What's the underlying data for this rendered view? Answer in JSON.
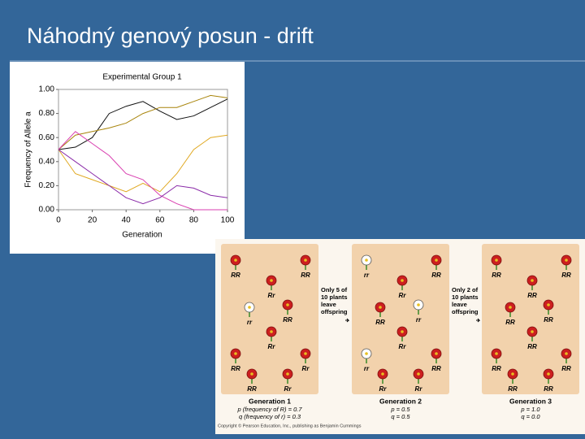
{
  "slide": {
    "title": "Náhodný genový posun - drift"
  },
  "chart_data": {
    "type": "line",
    "title": "Experimental Group 1",
    "x_label": "Generation",
    "y_label": "Frequency of Allele a",
    "x": [
      0,
      10,
      20,
      30,
      40,
      50,
      60,
      70,
      80,
      90,
      100
    ],
    "series": [
      {
        "color": "#111111",
        "values": [
          0.5,
          0.52,
          0.6,
          0.8,
          0.86,
          0.9,
          0.82,
          0.75,
          0.78,
          0.85,
          0.92
        ]
      },
      {
        "color": "#a8840a",
        "values": [
          0.5,
          0.62,
          0.65,
          0.68,
          0.72,
          0.8,
          0.85,
          0.85,
          0.9,
          0.95,
          0.93
        ]
      },
      {
        "color": "#e0a820",
        "values": [
          0.5,
          0.3,
          0.25,
          0.2,
          0.15,
          0.22,
          0.15,
          0.3,
          0.5,
          0.6,
          0.62
        ]
      },
      {
        "color": "#d93fb0",
        "values": [
          0.5,
          0.65,
          0.55,
          0.45,
          0.3,
          0.25,
          0.12,
          0.05,
          0,
          0,
          0
        ]
      },
      {
        "color": "#8a2aa8",
        "values": [
          0.5,
          0.4,
          0.3,
          0.2,
          0.1,
          0.05,
          0.1,
          0.2,
          0.18,
          0.12,
          0.1
        ]
      }
    ],
    "xlim": [
      0,
      100
    ],
    "xticks": [
      0,
      20,
      40,
      60,
      80,
      100
    ],
    "ylim": [
      0,
      1
    ],
    "yticks": [
      {
        "value": 0,
        "label": "0.00"
      },
      {
        "value": 0.2,
        "label": "0.20"
      },
      {
        "value": 0.4,
        "label": "0.40"
      },
      {
        "value": 0.6,
        "label": "0.60"
      },
      {
        "value": 0.8,
        "label": "0.80"
      },
      {
        "value": 1,
        "label": "1.00"
      }
    ]
  },
  "diagram": {
    "generations": [
      {
        "title": "Generation 1",
        "plants": [
          "RR",
          "RR",
          "Rr",
          "rr",
          "RR",
          "Rr",
          "RR",
          "Rr",
          "RR",
          "Rr"
        ],
        "p": "p (frequency of R) = 0.7",
        "q": "q (frequency of r) = 0.3"
      },
      {
        "title": "Generation 2",
        "plants": [
          "rr",
          "RR",
          "Rr",
          "RR",
          "rr",
          "Rr",
          "rr",
          "RR",
          "Rr",
          "Rr"
        ],
        "p": "p = 0.5",
        "q": "q = 0.5"
      },
      {
        "title": "Generation 3",
        "plants": [
          "RR",
          "RR",
          "RR",
          "RR",
          "RR",
          "RR",
          "RR",
          "RR",
          "RR",
          "RR"
        ],
        "p": "p = 1.0",
        "q": "q = 0.0"
      }
    ],
    "transitions": [
      [
        "Only 5 of",
        "10 plants",
        "leave",
        "offspring"
      ],
      [
        "Only 2 of",
        "10 plants",
        "leave",
        "offspring"
      ]
    ],
    "copyright": "Copyright © Pearson Education, Inc., publishing as Benjamin Cummings"
  }
}
